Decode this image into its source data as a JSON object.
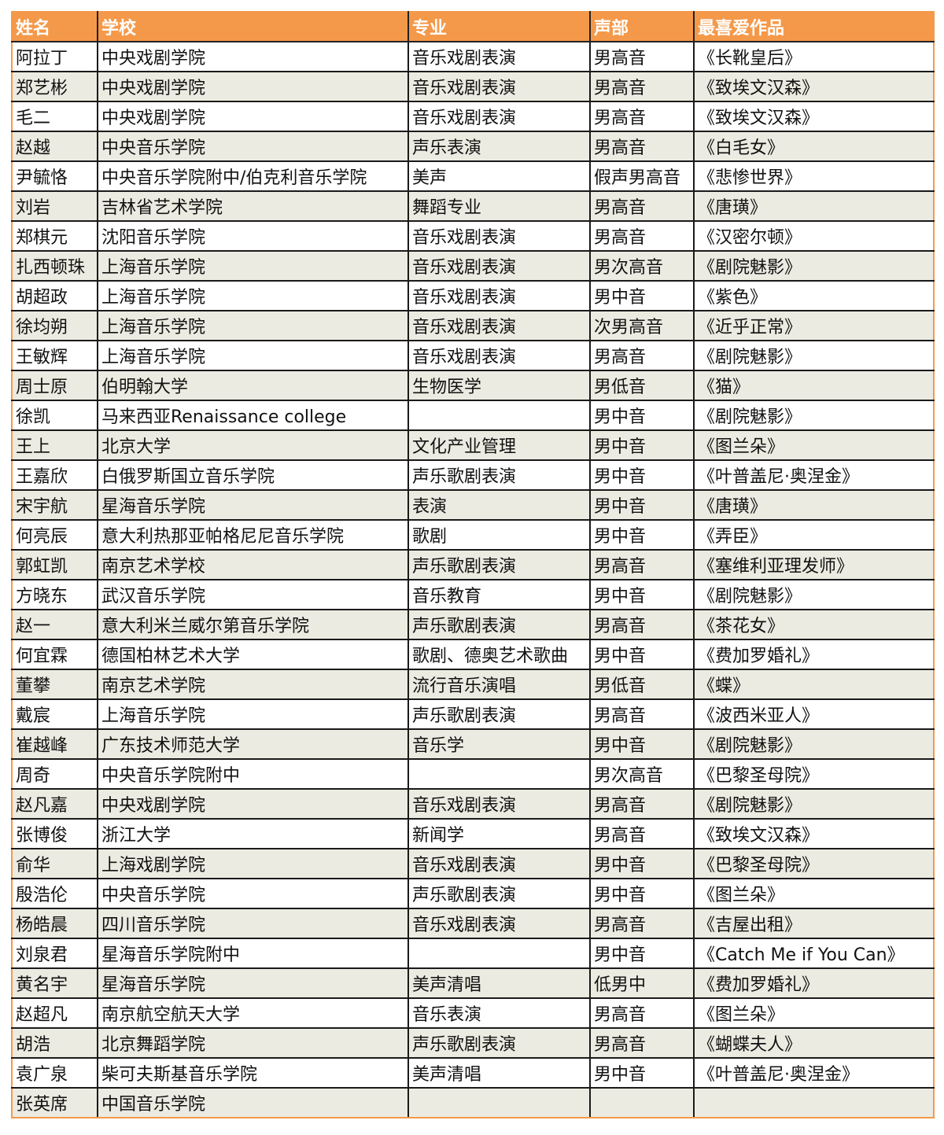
{
  "colors": {
    "header_bg": "#f4994a",
    "header_text": "#ffffff",
    "alt_row_bg": "#ecebe1",
    "border": "#1a1a1a"
  },
  "table": {
    "headers": [
      "姓名",
      "学校",
      "专业",
      "声部",
      "最喜爱作品"
    ],
    "rows": [
      [
        "阿拉丁",
        "中央戏剧学院",
        "音乐戏剧表演",
        "男高音",
        "《长靴皇后》"
      ],
      [
        "郑艺彬",
        "中央戏剧学院",
        "音乐戏剧表演",
        "男高音",
        "《致埃文汉森》"
      ],
      [
        "毛二",
        "中央戏剧学院",
        "音乐戏剧表演",
        "男高音",
        "《致埃文汉森》"
      ],
      [
        "赵越",
        "中央音乐学院",
        "声乐表演",
        "男高音",
        "《白毛女》"
      ],
      [
        "尹毓恪",
        "中央音乐学院附中/伯克利音乐学院",
        "美声",
        "假声男高音",
        "《悲惨世界》"
      ],
      [
        "刘岩",
        "吉林省艺术学院",
        "舞蹈专业",
        "男高音",
        "《唐璜》"
      ],
      [
        "郑棋元",
        "沈阳音乐学院",
        "音乐戏剧表演",
        "男高音",
        "《汉密尔顿》"
      ],
      [
        "扎西顿珠",
        "上海音乐学院",
        "音乐戏剧表演",
        "男次高音",
        "《剧院魅影》"
      ],
      [
        "胡超政",
        "上海音乐学院",
        "音乐戏剧表演",
        "男中音",
        "《紫色》"
      ],
      [
        "徐均朔",
        "上海音乐学院",
        "音乐戏剧表演",
        "次男高音",
        "《近乎正常》"
      ],
      [
        "王敏辉",
        "上海音乐学院",
        "音乐戏剧表演",
        "男高音",
        "《剧院魅影》"
      ],
      [
        "周士原",
        "伯明翰大学",
        "生物医学",
        "男低音",
        "《猫》"
      ],
      [
        "徐凯",
        "马来西亚Renaissance college",
        "",
        "男中音",
        "《剧院魅影》"
      ],
      [
        "王上",
        "北京大学",
        "文化产业管理",
        "男中音",
        "《图兰朵》"
      ],
      [
        "王嘉欣",
        "白俄罗斯国立音乐学院",
        "声乐歌剧表演",
        "男中音",
        "《叶普盖尼·奥涅金》"
      ],
      [
        "宋宇航",
        "星海音乐学院",
        "表演",
        "男中音",
        "《唐璜》"
      ],
      [
        "何亮辰",
        "意大利热那亚帕格尼尼音乐学院",
        "歌剧",
        "男中音",
        "《弄臣》"
      ],
      [
        "郭虹凯",
        "南京艺术学校",
        "声乐歌剧表演",
        "男高音",
        "《塞维利亚理发师》"
      ],
      [
        "方晓东",
        "武汉音乐学院",
        "音乐教育",
        "男中音",
        "《剧院魅影》"
      ],
      [
        "赵一",
        "意大利米兰威尔第音乐学院",
        "声乐歌剧表演",
        "男高音",
        "《茶花女》"
      ],
      [
        "何宜霖",
        "德国柏林艺术大学",
        "歌剧、德奥艺术歌曲",
        "男中音",
        "《费加罗婚礼》"
      ],
      [
        "董攀",
        "南京艺术学院",
        "流行音乐演唱",
        "男低音",
        "《蝶》"
      ],
      [
        "戴宸",
        "上海音乐学院",
        "声乐歌剧表演",
        "男高音",
        "《波西米亚人》"
      ],
      [
        "崔越峰",
        "广东技术师范大学",
        "音乐学",
        "男中音",
        "《剧院魅影》"
      ],
      [
        "周奇",
        "中央音乐学院附中",
        "",
        "男次高音",
        "《巴黎圣母院》"
      ],
      [
        "赵凡嘉",
        "中央戏剧学院",
        "音乐戏剧表演",
        "男高音",
        "《剧院魅影》"
      ],
      [
        "张博俊",
        "浙江大学",
        "新闻学",
        "男高音",
        "《致埃文汉森》"
      ],
      [
        "俞华",
        "上海戏剧学院",
        "音乐戏剧表演",
        "男中音",
        "《巴黎圣母院》"
      ],
      [
        "殷浩伦",
        "中央音乐学院",
        "声乐歌剧表演",
        "男中音",
        "《图兰朵》"
      ],
      [
        "杨皓晨",
        "四川音乐学院",
        "音乐戏剧表演",
        "男高音",
        "《吉屋出租》"
      ],
      [
        "刘泉君",
        "星海音乐学院附中",
        "",
        "男中音",
        "《Catch Me if You Can》"
      ],
      [
        "黄名宇",
        "星海音乐学院",
        "美声清唱",
        "低男中",
        "《费加罗婚礼》"
      ],
      [
        "赵超凡",
        "南京航空航天大学",
        "音乐表演",
        "男高音",
        "《图兰朵》"
      ],
      [
        "胡浩",
        "北京舞蹈学院",
        "声乐歌剧表演",
        "男高音",
        "《蝴蝶夫人》"
      ],
      [
        "袁广泉",
        "柴可夫斯基音乐学院",
        "美声清唱",
        "男中音",
        "《叶普盖尼·奥涅金》"
      ],
      [
        "张英席",
        "中国音乐学院",
        "",
        "",
        ""
      ]
    ]
  }
}
